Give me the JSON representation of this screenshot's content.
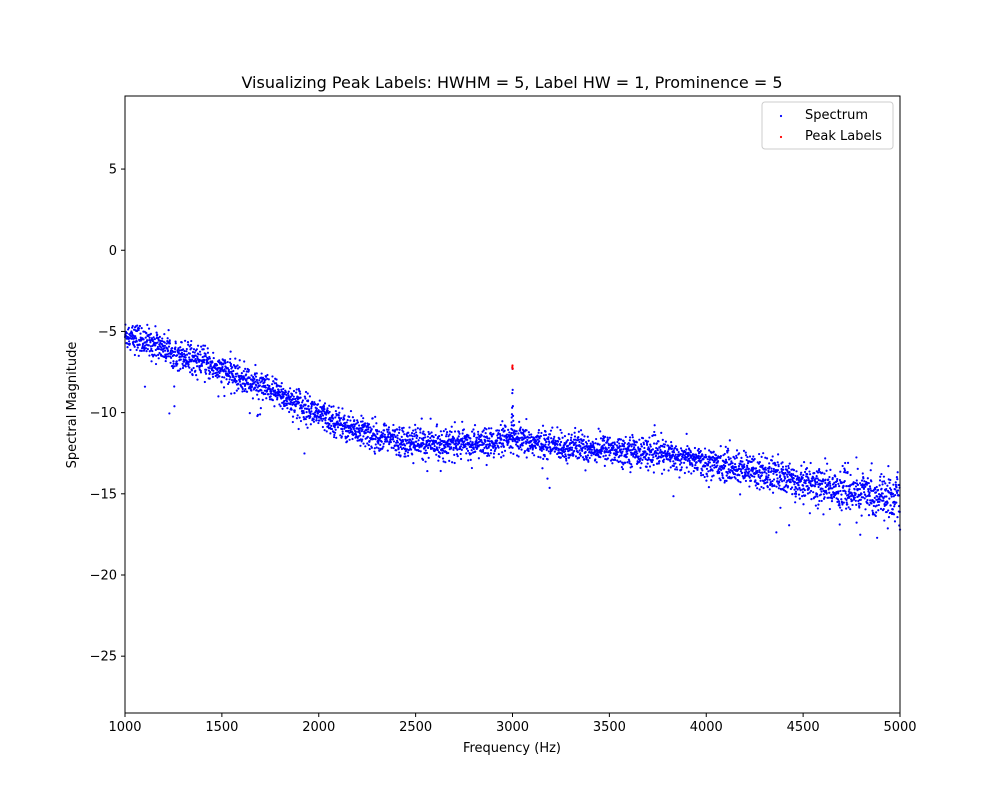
{
  "chart_data": {
    "type": "scatter",
    "title": "Visualizing Peak Labels: HWHM = 5, Label HW = 1, Prominence = 5",
    "xlabel": "Frequency (Hz)",
    "ylabel": "Spectral Magnitude",
    "xlim": [
      1000,
      5000
    ],
    "ylim": [
      -28.5,
      9.5
    ],
    "xticks": [
      1000,
      1500,
      2000,
      2500,
      3000,
      3500,
      4000,
      4500,
      5000
    ],
    "yticks": [
      -25,
      -20,
      -15,
      -10,
      -5,
      0,
      5
    ],
    "xtick_labels": [
      "1000",
      "1500",
      "2000",
      "2500",
      "3000",
      "3500",
      "4000",
      "4500",
      "5000"
    ],
    "ytick_labels": [
      "−25",
      "−20",
      "−15",
      "−10",
      "−5",
      "0",
      "5"
    ],
    "grid": false,
    "legend_position": "top-right",
    "series": [
      {
        "name": "Spectrum",
        "color": "#0000ff",
        "trend": [
          [
            1000,
            -5.2
          ],
          [
            1200,
            -6.0
          ],
          [
            1400,
            -6.9
          ],
          [
            1600,
            -7.9
          ],
          [
            1800,
            -8.9
          ],
          [
            2000,
            -10.1
          ],
          [
            2200,
            -11.1
          ],
          [
            2400,
            -11.7
          ],
          [
            2600,
            -11.9
          ],
          [
            2800,
            -11.9
          ],
          [
            3000,
            -11.7
          ],
          [
            3200,
            -12.0
          ],
          [
            3400,
            -12.2
          ],
          [
            3600,
            -12.3
          ],
          [
            3800,
            -12.6
          ],
          [
            4000,
            -13.0
          ],
          [
            4200,
            -13.5
          ],
          [
            4400,
            -14.0
          ],
          [
            4600,
            -14.5
          ],
          [
            4800,
            -15.0
          ],
          [
            5000,
            -15.3
          ]
        ],
        "noise_spread": 0.45,
        "point_count": 4000,
        "peak": {
          "x": [
            2994,
            2995,
            2996,
            2997,
            2998,
            2999,
            3000,
            3001,
            3002,
            3003,
            3004,
            3005,
            3006
          ],
          "y": [
            -11.0,
            -10.6,
            -10.3,
            -10.1,
            -9.7,
            -8.8,
            -7.3,
            -8.6,
            -9.6,
            -10.2,
            -10.5,
            -10.8,
            -11.2
          ]
        }
      },
      {
        "name": "Peak Labels",
        "color": "#ff0000",
        "x": [
          2999,
          3000,
          3001
        ],
        "y": [
          -7.2,
          -7.1,
          -7.3
        ]
      }
    ]
  }
}
